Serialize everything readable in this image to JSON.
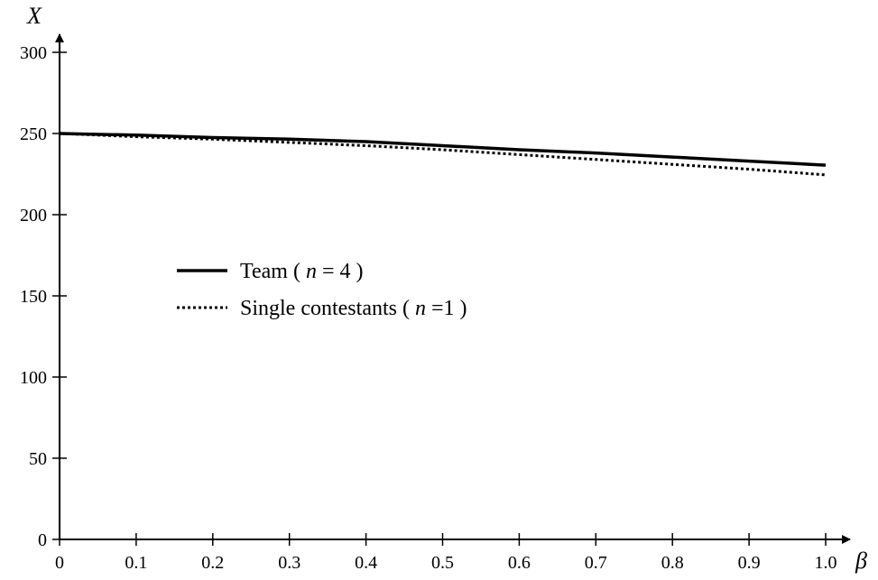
{
  "chart_data": {
    "type": "line",
    "xlabel": "β",
    "ylabel": "X",
    "xlim": [
      0,
      1.0
    ],
    "ylim": [
      0,
      300
    ],
    "x_ticks": [
      0,
      0.1,
      0.2,
      0.3,
      0.4,
      0.5,
      0.6,
      0.7,
      0.8,
      0.9,
      1.0
    ],
    "x_tick_labels": [
      "0",
      "0.1",
      "0.2",
      "0.3",
      "0.4",
      "0.5",
      "0.6",
      "0.7",
      "0.8",
      "0.9",
      "1.0"
    ],
    "y_ticks": [
      0,
      50,
      100,
      150,
      200,
      250,
      300
    ],
    "y_tick_labels": [
      "0",
      "50",
      "100",
      "150",
      "200",
      "250",
      "300"
    ],
    "grid": false,
    "legend_position": "center-left",
    "series": [
      {
        "name": "Team ( n = 4 )",
        "legend_parts": [
          "Team ( ",
          "n",
          " = 4 )"
        ],
        "style": "solid",
        "color": "#000000",
        "x": [
          0,
          0.1,
          0.2,
          0.3,
          0.4,
          0.5,
          0.6,
          0.7,
          0.8,
          0.9,
          1.0
        ],
        "y": [
          250,
          249,
          247.5,
          246.5,
          245,
          242.5,
          240,
          238,
          235.5,
          233,
          230.5
        ]
      },
      {
        "name": "Single contestants ( n =1 )",
        "legend_parts": [
          "Single contestants ( ",
          "n",
          " =1 )"
        ],
        "style": "dotted",
        "color": "#000000",
        "x": [
          0,
          0.1,
          0.2,
          0.3,
          0.4,
          0.5,
          0.6,
          0.7,
          0.8,
          0.9,
          1.0
        ],
        "y": [
          250,
          248,
          246.5,
          244.5,
          242.5,
          240,
          237,
          234,
          231,
          228,
          224.5
        ]
      }
    ]
  }
}
